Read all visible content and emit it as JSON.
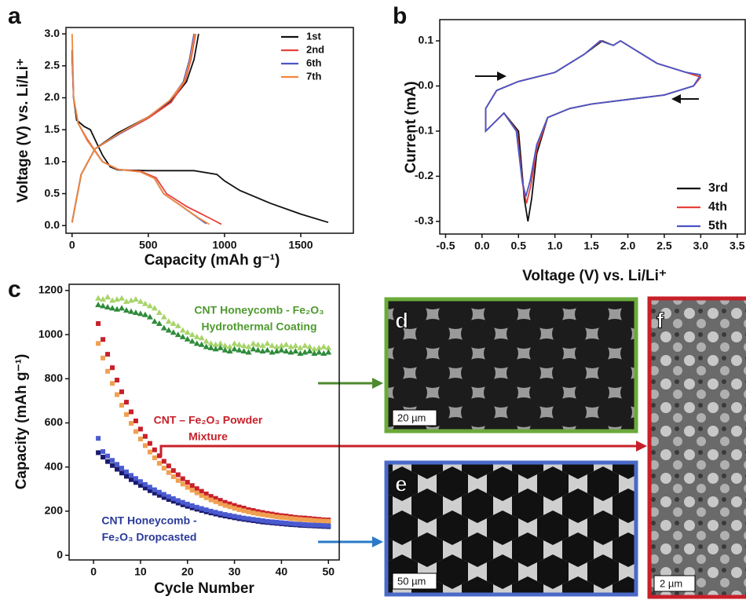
{
  "chart_data": [
    {
      "type": "line",
      "label": "a",
      "x_label": "Capacity (mAh g⁻¹)",
      "y_label": "Voltage (V) vs. Li/Li⁺",
      "xlim": [
        -40,
        1845
      ],
      "xticks": [
        0,
        500,
        1000,
        1500
      ],
      "ylim": [
        -0.12,
        3.1
      ],
      "yticks": [
        {
          "value": 0,
          "label": "0.0"
        },
        0.5,
        {
          "value": 1,
          "label": "1.0"
        },
        1.5,
        {
          "value": 2,
          "label": "2.0"
        },
        2.5,
        {
          "value": 3,
          "label": "3.0"
        }
      ],
      "legend": "upper right",
      "series": [
        {
          "name": "1st",
          "color": "#111111",
          "x": [
            0,
            10,
            30,
            80,
            120,
            160,
            200,
            250,
            300,
            500,
            800,
            950,
            1000,
            1100,
            1300,
            1500,
            1680,
            null,
            0,
            20,
            60,
            150,
            300,
            500,
            650,
            750,
            800,
            830
          ],
          "values": [
            2.7,
            2.0,
            1.65,
            1.55,
            1.5,
            1.3,
            1.1,
            0.92,
            0.87,
            0.86,
            0.86,
            0.8,
            0.7,
            0.55,
            0.35,
            0.18,
            0.05,
            null,
            0.05,
            0.3,
            0.8,
            1.2,
            1.45,
            1.7,
            1.95,
            2.25,
            2.6,
            3.0
          ]
        },
        {
          "name": "2nd",
          "color": "#e8413c",
          "x": [
            0,
            10,
            40,
            100,
            200,
            300,
            450,
            550,
            620,
            750,
            900,
            980,
            null,
            0,
            20,
            60,
            150,
            300,
            500,
            650,
            740,
            780,
            810
          ],
          "values": [
            2.7,
            2.0,
            1.6,
            1.35,
            1.0,
            0.88,
            0.85,
            0.75,
            0.5,
            0.3,
            0.12,
            0.02,
            null,
            0.05,
            0.3,
            0.8,
            1.2,
            1.42,
            1.68,
            1.93,
            2.25,
            2.6,
            3.0
          ]
        },
        {
          "name": "6th",
          "color": "#4a56c8",
          "x": [
            0,
            10,
            40,
            100,
            200,
            300,
            450,
            540,
            600,
            720,
            820,
            880,
            null,
            0,
            20,
            60,
            150,
            300,
            500,
            640,
            730,
            770,
            800
          ],
          "values": [
            2.75,
            2.0,
            1.6,
            1.33,
            1.0,
            0.88,
            0.84,
            0.74,
            0.5,
            0.3,
            0.13,
            0.03,
            null,
            0.05,
            0.3,
            0.8,
            1.2,
            1.42,
            1.7,
            1.95,
            2.25,
            2.6,
            3.0
          ]
        },
        {
          "name": "7th",
          "color": "#f0883a",
          "x": [
            0,
            5,
            10,
            40,
            100,
            200,
            300,
            450,
            540,
            600,
            720,
            830,
            900,
            null,
            0,
            20,
            60,
            150,
            300,
            500,
            640,
            735,
            775,
            805
          ],
          "values": [
            3.0,
            2.6,
            2.0,
            1.6,
            1.33,
            1.0,
            0.88,
            0.84,
            0.74,
            0.5,
            0.3,
            0.12,
            0.02,
            null,
            0.05,
            0.3,
            0.8,
            1.2,
            1.43,
            1.7,
            1.96,
            2.25,
            2.6,
            3.0
          ]
        }
      ]
    },
    {
      "type": "line",
      "label": "b",
      "x_label": "Voltage (V) vs. Li/Li⁺",
      "y_label": "Current (mA)",
      "xlim": [
        -0.58,
        3.61
      ],
      "xticks": [
        -0.5,
        {
          "value": 0,
          "label": "0.0"
        },
        0.5,
        {
          "value": 1,
          "label": "1.0"
        },
        1.5,
        {
          "value": 2,
          "label": "2.0"
        },
        2.5,
        {
          "value": 3,
          "label": "3.0"
        },
        3.5
      ],
      "ylim": [
        -0.328,
        0.147
      ],
      "yticks": [
        -0.3,
        -0.2,
        -0.1,
        {
          "value": 0,
          "label": "0.0"
        },
        0.1
      ],
      "legend": "lower right",
      "series": [
        {
          "name": "3rd",
          "color": "#111111",
          "x": [
            3.0,
            2.9,
            2.5,
            2.0,
            1.5,
            1.2,
            0.9,
            0.75,
            0.68,
            0.63,
            0.58,
            0.5,
            0.3,
            0.05,
            0.05,
            0.2,
            0.5,
            1.0,
            1.4,
            1.65,
            1.8,
            1.9,
            2.1,
            2.4,
            2.8,
            3.0
          ],
          "values": [
            0.02,
            0.0,
            -0.02,
            -0.03,
            -0.04,
            -0.05,
            -0.07,
            -0.15,
            -0.25,
            -0.3,
            -0.25,
            -0.1,
            -0.06,
            -0.1,
            -0.05,
            -0.01,
            0.01,
            0.03,
            0.07,
            0.1,
            0.09,
            0.1,
            0.08,
            0.05,
            0.03,
            0.02
          ]
        },
        {
          "name": "4th",
          "color": "#e8413c",
          "x": [
            3.0,
            2.9,
            2.5,
            2.0,
            1.5,
            1.2,
            0.9,
            0.75,
            0.67,
            0.61,
            0.56,
            0.48,
            0.3,
            0.05,
            0.05,
            0.2,
            0.5,
            1.0,
            1.4,
            1.63,
            1.8,
            1.9,
            2.1,
            2.4,
            2.8,
            3.0
          ],
          "values": [
            0.02,
            0.0,
            -0.02,
            -0.03,
            -0.04,
            -0.05,
            -0.07,
            -0.14,
            -0.22,
            -0.26,
            -0.22,
            -0.1,
            -0.06,
            -0.1,
            -0.05,
            -0.01,
            0.01,
            0.03,
            0.07,
            0.1,
            0.09,
            0.1,
            0.08,
            0.05,
            0.03,
            0.02
          ]
        },
        {
          "name": "5th",
          "color": "#4a56c8",
          "x": [
            3.0,
            2.9,
            2.5,
            2.0,
            1.5,
            1.2,
            0.9,
            0.75,
            0.66,
            0.6,
            0.55,
            0.47,
            0.3,
            0.05,
            0.05,
            0.2,
            0.5,
            1.0,
            1.4,
            1.62,
            1.8,
            1.9,
            2.1,
            2.4,
            2.8,
            3.0
          ],
          "values": [
            0.025,
            0.0,
            -0.02,
            -0.03,
            -0.04,
            -0.05,
            -0.07,
            -0.13,
            -0.21,
            -0.245,
            -0.21,
            -0.1,
            -0.06,
            -0.1,
            -0.05,
            -0.01,
            0.01,
            0.03,
            0.07,
            0.1,
            0.09,
            0.1,
            0.08,
            0.05,
            0.03,
            0.025
          ]
        }
      ]
    },
    {
      "type": "scatter",
      "label": "c",
      "x_label": "Cycle Number",
      "y_label": "Capacity (mAh g⁻¹)",
      "xlim": [
        -5.2,
        52.3
      ],
      "xticks": [
        0,
        10,
        20,
        30,
        40,
        50
      ],
      "ylim": [
        -21,
        1228
      ],
      "yticks": [
        0,
        200,
        400,
        600,
        800,
        1000,
        1200
      ],
      "x": [
        1,
        2,
        3,
        4,
        5,
        6,
        7,
        8,
        9,
        10,
        11,
        12,
        13,
        14,
        15,
        16,
        17,
        18,
        19,
        20,
        21,
        22,
        23,
        24,
        25,
        26,
        27,
        28,
        29,
        30,
        31,
        32,
        33,
        34,
        35,
        36,
        37,
        38,
        39,
        40,
        41,
        42,
        43,
        44,
        45,
        46,
        47,
        48,
        49,
        50
      ],
      "annotations": [
        {
          "lines": [
            "CNT Honeycomb - Fe₂O₃",
            "Hydrothermal Coating"
          ],
          "color": "#4e9a2e"
        },
        {
          "lines": [
            "CNT – Fe₂O₃ Powder",
            "Mixture"
          ],
          "color": "#c8202a"
        },
        {
          "lines": [
            "CNT Honeycomb -",
            "Fe₂O₃ Dropcasted"
          ],
          "color": "#2a3a9a"
        }
      ],
      "series": [
        {
          "color": "#a8d46a",
          "marker": "triangle",
          "values": [
            1165,
            1160,
            1170,
            1155,
            1160,
            1165,
            1150,
            1155,
            1160,
            1150,
            1140,
            1130,
            1120,
            1100,
            1080,
            1060,
            1050,
            1040,
            1020,
            1010,
            1000,
            990,
            985,
            970,
            960,
            955,
            960,
            950,
            945,
            960,
            955,
            950,
            945,
            960,
            955,
            950,
            960,
            950,
            945,
            950,
            955,
            945,
            950,
            940,
            950,
            945,
            935,
            940,
            945,
            940
          ]
        },
        {
          "color": "#2e8b3a",
          "marker": "triangle",
          "values": [
            1135,
            1130,
            1125,
            1120,
            1115,
            1120,
            1110,
            1105,
            1100,
            1095,
            1090,
            1080,
            1060,
            1050,
            1030,
            1020,
            1010,
            1000,
            990,
            980,
            970,
            960,
            955,
            945,
            940,
            935,
            940,
            930,
            925,
            935,
            930,
            925,
            920,
            935,
            930,
            925,
            930,
            920,
            925,
            930,
            925,
            920,
            925,
            915,
            920,
            925,
            915,
            920,
            915,
            920
          ]
        },
        {
          "color": "#c8202a",
          "marker": "square",
          "values": [
            1050,
            978,
            911,
            850,
            794,
            741,
            694,
            650,
            609,
            572,
            539,
            507,
            478,
            451,
            426,
            405,
            384,
            365,
            347,
            331,
            316,
            302,
            290,
            278,
            267,
            258,
            249,
            240,
            233,
            226,
            219,
            214,
            207,
            203,
            198,
            194,
            190,
            187,
            183,
            180,
            178,
            175,
            172,
            170,
            169,
            167,
            165,
            163,
            161,
            160
          ]
        },
        {
          "color": "#f0a050",
          "marker": "square",
          "values": [
            960,
            894,
            834,
            779,
            728,
            680,
            638,
            598,
            561,
            527,
            497,
            468,
            442,
            417,
            395,
            375,
            356,
            339,
            323,
            308,
            295,
            283,
            271,
            261,
            251,
            243,
            234,
            226,
            220,
            213,
            207,
            202,
            197,
            192,
            188,
            184,
            181,
            178,
            174,
            172,
            170,
            167,
            165,
            163,
            161,
            160,
            158,
            156,
            155,
            154
          ]
        },
        {
          "color": "#1a1a6e",
          "marker": "square",
          "values": [
            465,
            445,
            425,
            407,
            390,
            373,
            358,
            343,
            330,
            317,
            305,
            293,
            282,
            272,
            262,
            253,
            245,
            237,
            229,
            222,
            215,
            209,
            203,
            197,
            192,
            187,
            182,
            178,
            174,
            170,
            166,
            163,
            160,
            157,
            154,
            151,
            149,
            147,
            145,
            143,
            141,
            139,
            138,
            136,
            135,
            134,
            133,
            132,
            131,
            130
          ]
        },
        {
          "color": "#4a5ad0",
          "marker": "square",
          "values": [
            530,
            470,
            450,
            430,
            412,
            395,
            378,
            362,
            348,
            334,
            321,
            309,
            297,
            286,
            276,
            266,
            257,
            248,
            240,
            232,
            225,
            218,
            212,
            206,
            200,
            195,
            190,
            185,
            181,
            177,
            173,
            169,
            166,
            163,
            160,
            157,
            154,
            152,
            150,
            148,
            146,
            144,
            142,
            141,
            139,
            138,
            137,
            136,
            135,
            134
          ]
        }
      ]
    }
  ],
  "images": [
    {
      "label": "d",
      "scale_bar": "20 µm"
    },
    {
      "label": "e",
      "scale_bar": "50 µm"
    },
    {
      "label": "f",
      "scale_bar": "2 µm"
    }
  ]
}
